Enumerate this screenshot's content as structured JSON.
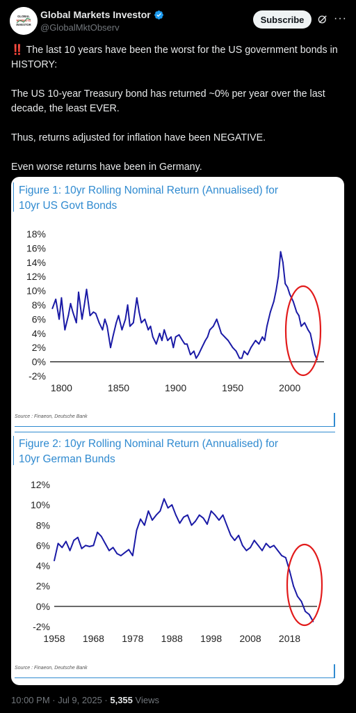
{
  "account": {
    "name": "Global Markets Investor",
    "handle": "@GlobalMktObserv",
    "avatar_text": [
      "GLOBAL",
      "MARKETS",
      "INVESTOR"
    ]
  },
  "header": {
    "subscribe_label": "Subscribe",
    "grok_icon": "grok-icon",
    "more_icon": "more-horizontal-icon"
  },
  "tweet": {
    "line1_emoji": "‼️",
    "line1": "The last 10 years have been the worst for the US government bonds in HISTORY:",
    "line2": "The US 10-year Treasury bond has returned ~0% per year over the last decade, the least EVER.",
    "line3": "Thus, returns adjusted for inflation have been NEGATIVE.",
    "line4": "Even worse returns have been in Germany."
  },
  "figure1": {
    "title_line1": "Figure 1: 10yr Rolling Nominal Return (Annualised) for",
    "title_line2": "10yr US Govt Bonds",
    "source": "Source : Finaeon, Deutsche Bank"
  },
  "figure2": {
    "title_line1": "Figure 2: 10yr Rolling Nominal Return (Annualised) for",
    "title_line2": "10yr German Bunds",
    "source": "Source : Finaeon, Deutsche Bank"
  },
  "chart_data": [
    {
      "type": "line",
      "title": "Figure 1: 10yr Rolling Nominal Return (Annualised) for 10yr US Govt Bonds",
      "xlabel": "",
      "ylabel": "",
      "xlim": [
        1790,
        2030
      ],
      "ylim": [
        -2,
        18
      ],
      "xticks": [
        "1800",
        "1850",
        "1900",
        "1950",
        "2000"
      ],
      "yticks": [
        "18%",
        "16%",
        "14%",
        "12%",
        "10%",
        "8%",
        "6%",
        "4%",
        "2%",
        "0%",
        "-2%"
      ],
      "color": "#1a1aa6",
      "annotation": "red ellipse around most recent decade",
      "series": [
        {
          "x": [
            1792,
            1795,
            1798,
            1800,
            1803,
            1806,
            1808,
            1810,
            1813,
            1815,
            1818,
            1820,
            1822,
            1825,
            1828,
            1830,
            1833,
            1836,
            1838,
            1840,
            1843,
            1845,
            1848,
            1850,
            1853,
            1856,
            1858,
            1860,
            1863,
            1866,
            1868,
            1870,
            1873,
            1876,
            1878,
            1880,
            1883,
            1886,
            1888,
            1890,
            1893,
            1896,
            1898,
            1900,
            1903,
            1906,
            1908,
            1910,
            1913,
            1916,
            1918,
            1920,
            1923,
            1926,
            1928,
            1930,
            1933,
            1936,
            1938,
            1940,
            1943,
            1946,
            1948,
            1950,
            1953,
            1956,
            1958,
            1960,
            1963,
            1966,
            1968,
            1970,
            1973,
            1976,
            1978,
            1980,
            1983,
            1986,
            1988,
            1990,
            1992,
            1994,
            1996,
            1998,
            2000,
            2003,
            2006,
            2008,
            2010,
            2013,
            2016,
            2018,
            2020,
            2022,
            2024
          ],
          "y": [
            7.5,
            8.8,
            6.0,
            9.0,
            4.5,
            6.5,
            8.2,
            7.0,
            5.5,
            9.8,
            6.0,
            8.0,
            10.2,
            6.5,
            7.0,
            6.8,
            5.5,
            4.5,
            6.0,
            5.0,
            2.0,
            3.5,
            5.5,
            6.5,
            4.5,
            6.0,
            8.0,
            5.0,
            5.5,
            9.0,
            7.0,
            5.5,
            6.0,
            4.5,
            5.0,
            3.5,
            2.5,
            4.0,
            3.0,
            4.5,
            3.0,
            3.5,
            2.0,
            3.5,
            3.8,
            3.0,
            2.5,
            2.5,
            1.0,
            1.5,
            0.5,
            1.0,
            2.0,
            3.0,
            3.5,
            4.5,
            5.0,
            6.0,
            5.0,
            4.0,
            3.5,
            3.0,
            2.5,
            2.0,
            1.5,
            0.5,
            0.5,
            1.5,
            1.0,
            2.0,
            2.5,
            3.0,
            2.5,
            3.5,
            3.0,
            5.0,
            7.0,
            8.5,
            10.0,
            12.0,
            15.5,
            14.0,
            11.0,
            10.5,
            9.5,
            8.5,
            7.0,
            6.5,
            5.0,
            5.5,
            4.5,
            4.0,
            2.5,
            1.0,
            0.3
          ]
        }
      ]
    },
    {
      "type": "line",
      "title": "Figure 2: 10yr Rolling Nominal Return (Annualised) for 10yr German Bunds",
      "xlabel": "",
      "ylabel": "",
      "xlim": [
        1958,
        2025
      ],
      "ylim": [
        -2,
        12
      ],
      "xticks": [
        "1958",
        "1968",
        "1978",
        "1988",
        "1998",
        "2008",
        "2018"
      ],
      "yticks": [
        "12%",
        "10%",
        "8%",
        "6%",
        "4%",
        "2%",
        "0%",
        "-2%"
      ],
      "color": "#1a1aa6",
      "annotation": "red ellipse around most recent years",
      "series": [
        {
          "x": [
            1958,
            1959,
            1960,
            1961,
            1962,
            1963,
            1964,
            1965,
            1966,
            1967,
            1968,
            1969,
            1970,
            1971,
            1972,
            1973,
            1974,
            1975,
            1976,
            1977,
            1978,
            1979,
            1980,
            1981,
            1982,
            1983,
            1984,
            1985,
            1986,
            1987,
            1988,
            1989,
            1990,
            1991,
            1992,
            1993,
            1994,
            1995,
            1996,
            1997,
            1998,
            1999,
            2000,
            2001,
            2002,
            2003,
            2004,
            2005,
            2006,
            2007,
            2008,
            2009,
            2010,
            2011,
            2012,
            2013,
            2014,
            2015,
            2016,
            2017,
            2018,
            2019,
            2020,
            2021,
            2022,
            2023,
            2024
          ],
          "y": [
            4.5,
            6.2,
            5.8,
            6.4,
            5.5,
            6.5,
            6.8,
            5.7,
            6.0,
            5.9,
            6.0,
            7.3,
            6.9,
            6.2,
            5.5,
            5.8,
            5.2,
            5.0,
            5.3,
            5.6,
            5.0,
            7.5,
            8.6,
            8.0,
            9.4,
            8.5,
            9.0,
            9.4,
            10.6,
            9.7,
            10.0,
            9.0,
            8.2,
            8.8,
            9.0,
            8.0,
            8.4,
            9.0,
            8.7,
            8.1,
            9.4,
            9.0,
            8.5,
            9.0,
            8.0,
            7.0,
            6.5,
            7.0,
            6.0,
            5.5,
            5.8,
            6.5,
            6.0,
            5.5,
            6.2,
            5.8,
            6.0,
            5.5,
            5.0,
            4.8,
            3.5,
            2.0,
            1.0,
            0.5,
            -0.5,
            -0.8,
            -1.5
          ]
        }
      ]
    }
  ],
  "footer": {
    "timestamp": "10:00 PM · Jul 9, 2025 · ",
    "views_count": "5,355",
    "views_label": " Views"
  }
}
